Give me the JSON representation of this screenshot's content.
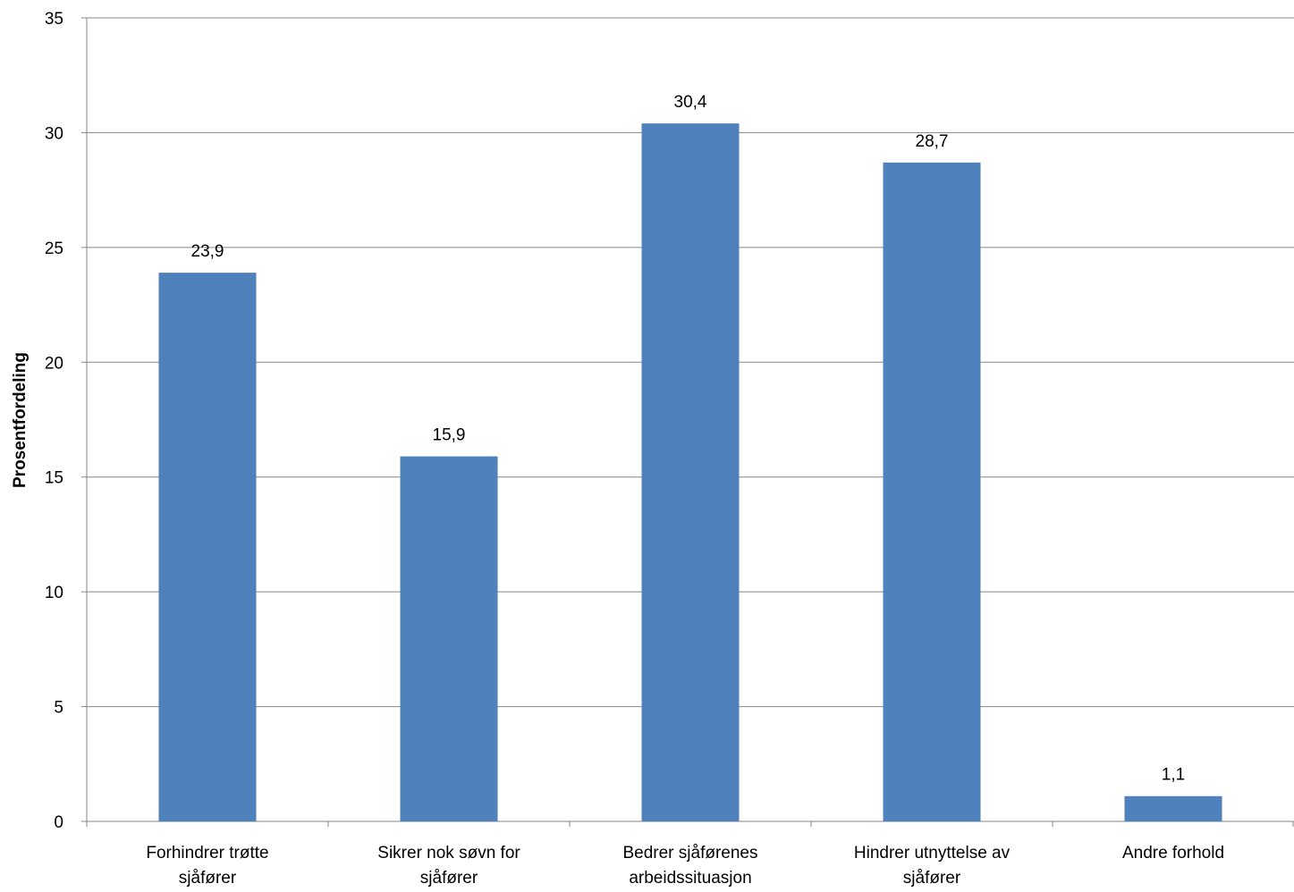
{
  "chart_data": {
    "type": "bar",
    "title": "",
    "xlabel": "",
    "ylabel": "Prosentfordeling",
    "ylim": [
      0,
      35
    ],
    "yticks": [
      0,
      5,
      10,
      15,
      20,
      25,
      30,
      35
    ],
    "grid": true,
    "legend": "none",
    "bar_color": "#4F81BD",
    "categories": [
      [
        "Forhindrer trøtte",
        "sjåfører"
      ],
      [
        "Sikrer nok søvn for",
        "sjåfører"
      ],
      [
        "Bedrer sjåførenes",
        "arbeidssituasjon"
      ],
      [
        "Hindrer utnyttelse av",
        "sjåfører"
      ],
      [
        "Andre forhold"
      ]
    ],
    "values": [
      23.9,
      15.9,
      30.4,
      28.7,
      1.1
    ],
    "data_labels": [
      "23,9",
      "15,9",
      "30,4",
      "28,7",
      "1,1"
    ]
  }
}
